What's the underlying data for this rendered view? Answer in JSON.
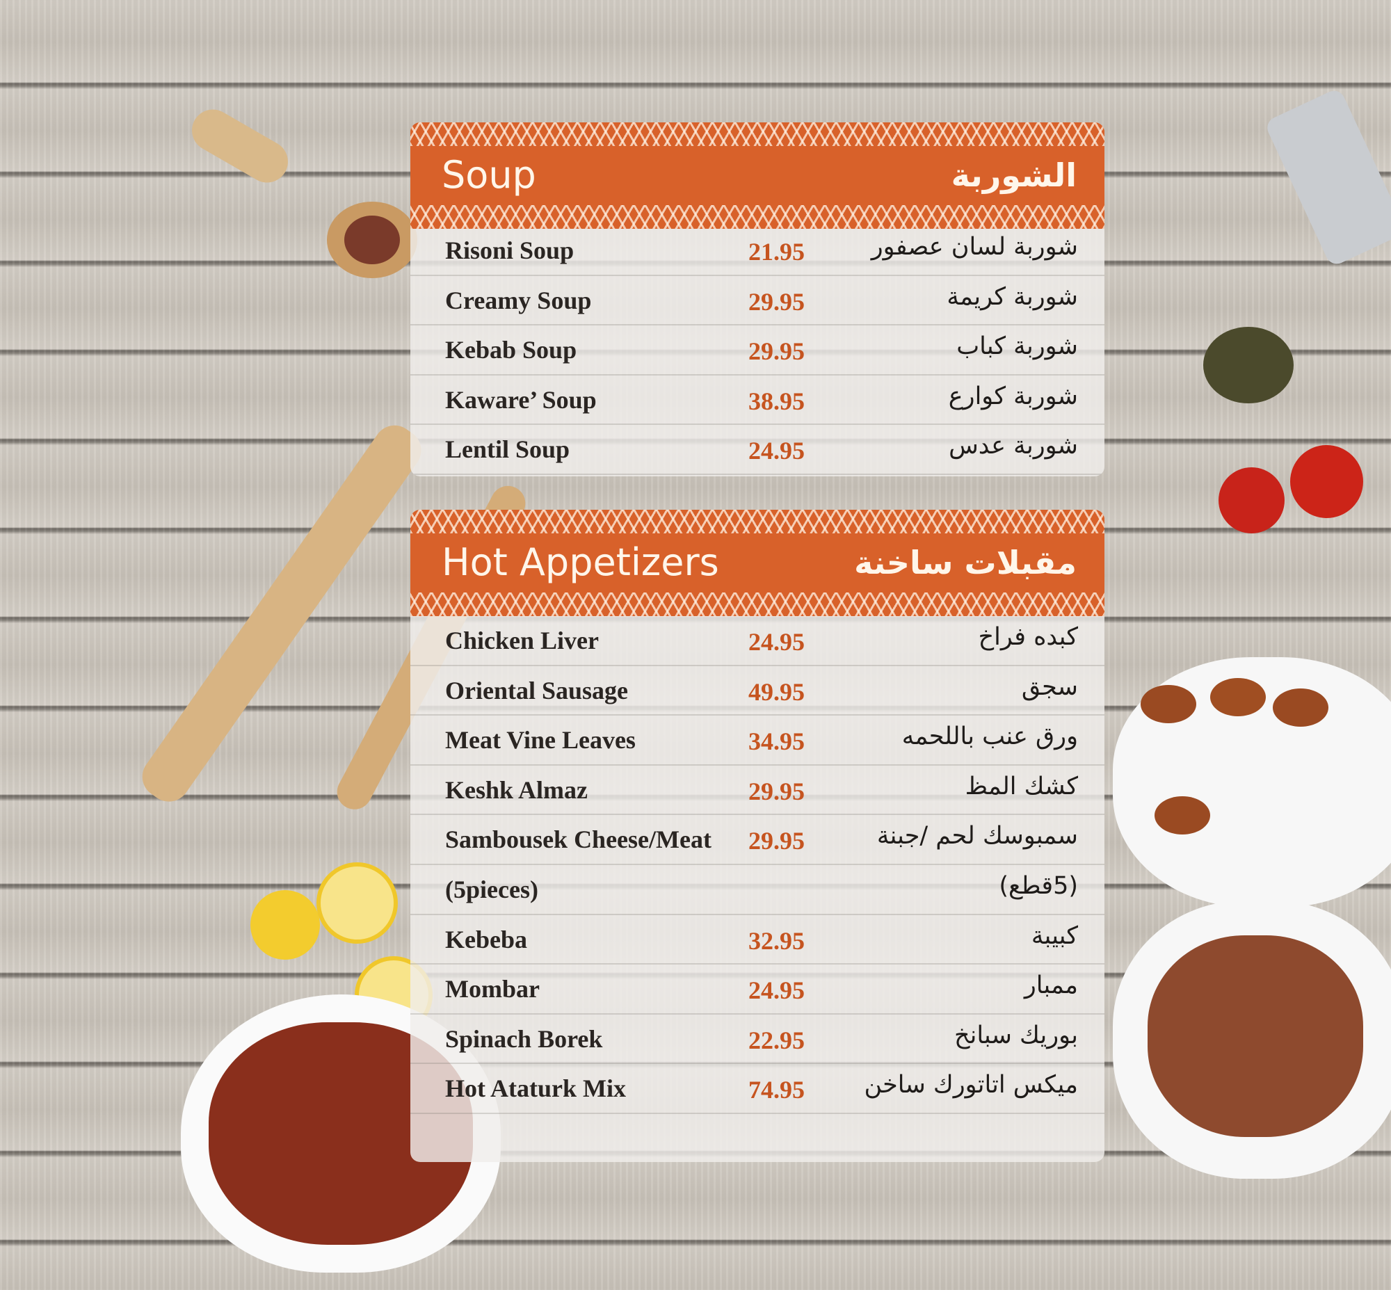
{
  "sections": [
    {
      "title_en": "Soup",
      "title_ar": "الشوربة",
      "items": [
        {
          "en": "Risoni Soup",
          "price": "21.95",
          "ar": "شوربة لسان عصفور"
        },
        {
          "en": "Creamy Soup",
          "price": "29.95",
          "ar": "شوربة كريمة"
        },
        {
          "en": "Kebab Soup",
          "price": "29.95",
          "ar": "شوربة كباب"
        },
        {
          "en": "Kaware’ Soup",
          "price": "38.95",
          "ar": "شوربة كوارع"
        },
        {
          "en": "Lentil Soup",
          "price": "24.95",
          "ar": "شوربة عدس"
        }
      ]
    },
    {
      "title_en": "Hot Appetizers",
      "title_ar": "مقبلات ساخنة",
      "items": [
        {
          "en": "Chicken Liver",
          "price": "24.95",
          "ar": "كبده فراخ"
        },
        {
          "en": "Oriental Sausage",
          "price": "49.95",
          "ar": "سجق"
        },
        {
          "en": "Meat Vine Leaves",
          "price": "34.95",
          "ar": "ورق عنب باللحمه"
        },
        {
          "en": "Keshk Almaz",
          "price": "29.95",
          "ar": "كشك المظ"
        },
        {
          "en": "Sambousek Cheese/Meat",
          "price": "29.95",
          "ar": "سمبوسك لحم /جبنة"
        },
        {
          "en": "(5pieces)",
          "price": "",
          "ar": "(5قطع)"
        },
        {
          "en": "Kebeba",
          "price": "32.95",
          "ar": "كبيبة"
        },
        {
          "en": "Mombar",
          "price": "24.95",
          "ar": "ممبار"
        },
        {
          "en": "Spinach Borek",
          "price": "22.95",
          "ar": "بوريك سبانخ"
        },
        {
          "en": "Hot Ataturk Mix",
          "price": "74.95",
          "ar": "ميكس اتاتورك ساخن"
        }
      ]
    }
  ],
  "colors": {
    "header": "#d8612a",
    "price": "#c6541f",
    "text": "#2a2522"
  }
}
